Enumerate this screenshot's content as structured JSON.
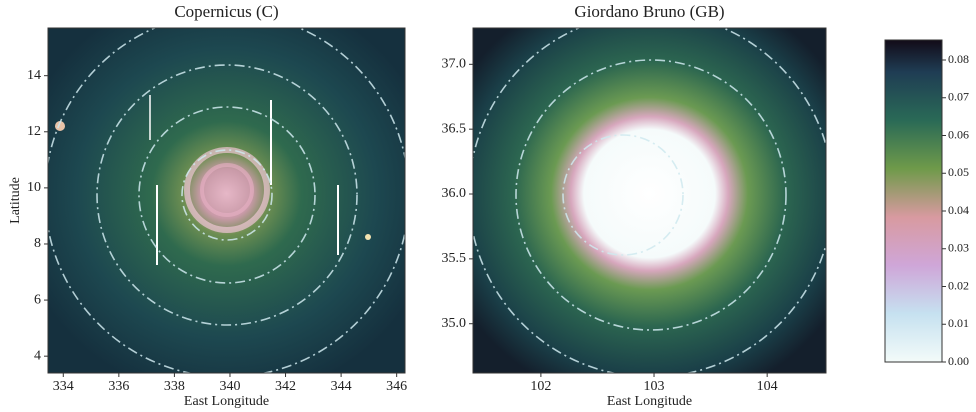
{
  "chart_data": [
    {
      "type": "heatmap",
      "title": "Copernicus (C)",
      "xlabel": "East Longitude",
      "ylabel": "Latitude",
      "xlim": [
        333.45,
        346.3
      ],
      "ylim": [
        3.4,
        15.7
      ],
      "xticks": [
        334,
        336,
        338,
        340,
        342,
        344,
        346
      ],
      "yticks": [
        4,
        6,
        8,
        10,
        12,
        14
      ]
    },
    {
      "type": "heatmap",
      "title": "Giordano Bruno (GB)",
      "xlabel": "East Longitude",
      "xlim": [
        101.4,
        104.52
      ],
      "ylim": [
        34.62,
        37.28
      ],
      "xticks": [
        102,
        103,
        104
      ],
      "yticks": [
        {
          "value": 35.0,
          "label": "35.0"
        },
        {
          "value": 35.5,
          "label": "35.5"
        },
        {
          "value": 36.0,
          "label": "36.0"
        },
        {
          "value": 36.5,
          "label": "36.5"
        },
        {
          "value": 37.0,
          "label": "37.0"
        }
      ]
    },
    {
      "type": "colorbar",
      "ylim": [
        0,
        0.0853
      ],
      "yticks": [
        {
          "value": 0,
          "label": "0.00"
        },
        0.01,
        0.02,
        0.03,
        0.04,
        0.05,
        0.06,
        0.07,
        0.08
      ]
    }
  ]
}
